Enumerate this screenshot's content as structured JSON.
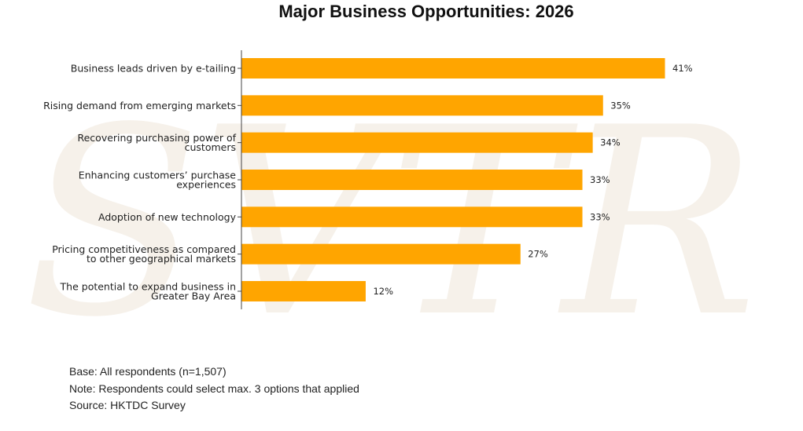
{
  "chart_data": {
    "type": "bar",
    "orientation": "horizontal",
    "title": "Major Business Opportunities: 2026",
    "categories": [
      [
        "Business leads driven by e-tailing"
      ],
      [
        "Rising demand from emerging markets"
      ],
      [
        "Recovering purchasing power of",
        "customers"
      ],
      [
        "Enhancing customers’ purchase",
        "experiences"
      ],
      [
        "Adoption of new technology"
      ],
      [
        "Pricing competitiveness as compared",
        "to other geographical markets"
      ],
      [
        "The potential to expand business in",
        "Greater Bay Area"
      ]
    ],
    "values": [
      41,
      35,
      34,
      33,
      33,
      27,
      12
    ],
    "value_labels": [
      "41%",
      "35%",
      "34%",
      "33%",
      "33%",
      "27%",
      "12%"
    ],
    "xlim": [
      0,
      50
    ],
    "bar_color": "#FFA500",
    "grid": false
  },
  "watermark_text": "SVTR",
  "footnotes": {
    "base": "Base: All respondents (n=1,507)",
    "note": "Note: Respondents could select max. 3 options that applied",
    "source": "Source: HKTDC Survey"
  }
}
